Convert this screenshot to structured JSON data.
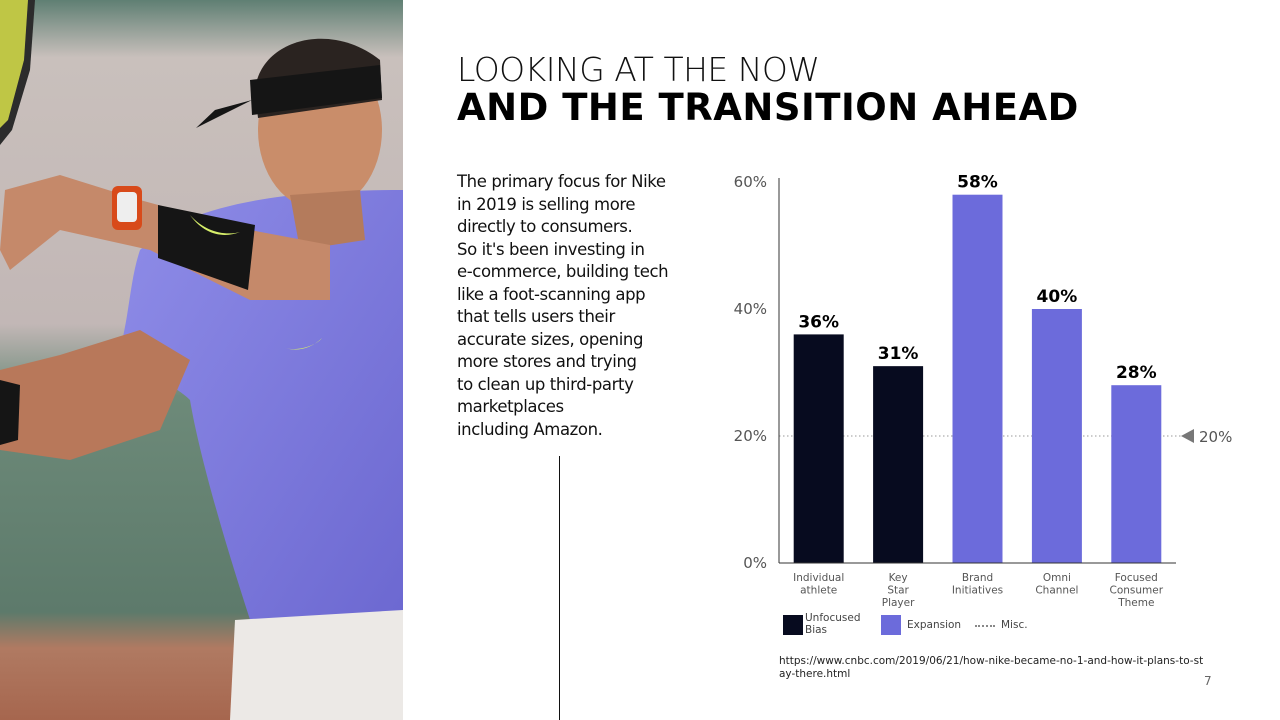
{
  "slide": {
    "title_line1": "LOOKING AT THE NOW",
    "title_line2": "AND THE TRANSITION AHEAD",
    "body_lines": [
      "The primary focus for Nike",
      "in 2019 is selling more",
      "directly to consumers.",
      "So it's been investing in",
      "e-commerce, building tech",
      "like a foot-scanning app",
      "that tells users their",
      "accurate sizes, opening",
      "more stores and trying",
      "to clean up third-party",
      "marketplaces",
      "including Amazon."
    ],
    "source_url": "https://www.cnbc.com/2019/06/21/how-nike-became-no-1-and-how-it-plans-to-stay-there.html",
    "page_number": "7",
    "photo_icon": "tennis-player-photo"
  },
  "chart_data": {
    "type": "bar",
    "title": "",
    "xlabel": "",
    "ylabel": "",
    "ylim": [
      0,
      60
    ],
    "y_ticks": [
      0,
      20,
      40,
      60
    ],
    "y_tick_labels": [
      "0%",
      "20%",
      "40%",
      "60%"
    ],
    "categories": [
      [
        "Individual",
        "athlete"
      ],
      [
        "Key",
        "Star",
        "Player"
      ],
      [
        "Brand",
        "Initiatives"
      ],
      [
        "Omni",
        "Channel"
      ],
      [
        "Focused",
        "Consumer",
        "Theme"
      ]
    ],
    "values": [
      36,
      31,
      58,
      40,
      28
    ],
    "value_labels": [
      "36%",
      "31%",
      "58%",
      "40%",
      "28%"
    ],
    "bar_groups": [
      "unfocused",
      "unfocused",
      "expansion",
      "expansion",
      "expansion"
    ],
    "reference_line": {
      "value": 20,
      "label": "20%",
      "style": "dotted"
    },
    "colors": {
      "unfocused": "#070b1f",
      "expansion": "#6c6bdb",
      "axis": "#333333",
      "reference": "#999999"
    },
    "legend": [
      {
        "key": "unfocused",
        "label_lines": [
          "Unfocused",
          "Bias"
        ]
      },
      {
        "key": "expansion",
        "label_lines": [
          "Expansion"
        ]
      },
      {
        "key": "misc",
        "label_lines": [
          "Misc."
        ]
      }
    ]
  }
}
